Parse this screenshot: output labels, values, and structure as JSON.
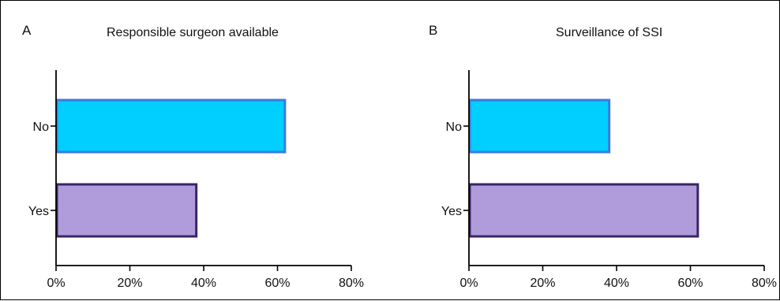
{
  "chart_data": [
    {
      "type": "bar",
      "orientation": "horizontal",
      "panel_label": "A",
      "title": "Responsible surgeon available",
      "categories": [
        "No",
        "Yes"
      ],
      "values": [
        62,
        38
      ],
      "value_unit": "%",
      "xlim": [
        0,
        80
      ],
      "xticks": [
        "0%",
        "20%",
        "40%",
        "60%",
        "80%"
      ],
      "xtick_values": [
        0,
        20,
        40,
        60,
        80
      ],
      "xlabel": "",
      "ylabel": "",
      "grid": false,
      "legend": "none",
      "colors": [
        {
          "fill": "#00CFFF",
          "stroke": "#3A7BE0"
        },
        {
          "fill": "#B09CDB",
          "stroke": "#3B2466"
        }
      ]
    },
    {
      "type": "bar",
      "orientation": "horizontal",
      "panel_label": "B",
      "title": "Surveillance of SSI",
      "categories": [
        "No",
        "Yes"
      ],
      "values": [
        38,
        62
      ],
      "value_unit": "%",
      "xlim": [
        0,
        80
      ],
      "xticks": [
        "0%",
        "20%",
        "40%",
        "60%",
        "80%"
      ],
      "xtick_values": [
        0,
        20,
        40,
        60,
        80
      ],
      "xlabel": "",
      "ylabel": "",
      "grid": false,
      "legend": "none",
      "colors": [
        {
          "fill": "#00CFFF",
          "stroke": "#3A7BE0"
        },
        {
          "fill": "#B09CDB",
          "stroke": "#3B2466"
        }
      ]
    }
  ]
}
